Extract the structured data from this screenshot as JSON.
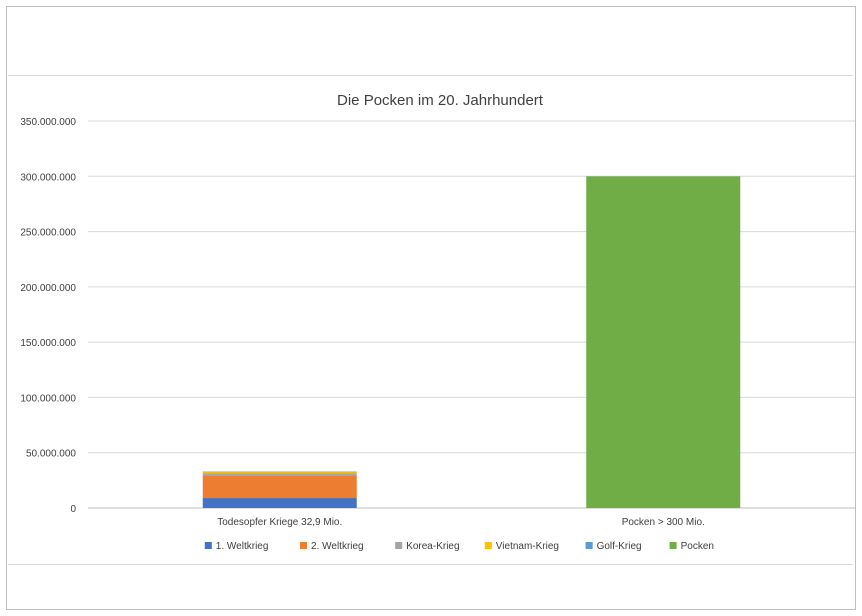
{
  "chart_data": {
    "type": "bar",
    "stacked": true,
    "title": "Die Pocken im 20. Jahrhundert",
    "categories": [
      "Todesopfer Kriege 32,9 Mio.",
      "Pocken > 300 Mio."
    ],
    "ylim": [
      0,
      350000000
    ],
    "yticks": [
      0,
      50000000,
      100000000,
      150000000,
      200000000,
      250000000,
      300000000,
      350000000
    ],
    "ytick_labels": [
      "0",
      "50.000.000",
      "100.000.000",
      "150.000.000",
      "200.000.000",
      "250.000.000",
      "300.000.000",
      "350.000.000"
    ],
    "grid": true,
    "legend_position": "bottom",
    "series": [
      {
        "name": "1. Weltkrieg",
        "color": "#4472c4",
        "values": [
          9000000,
          0
        ]
      },
      {
        "name": "2. Weltkrieg",
        "color": "#ed7d31",
        "values": [
          20500000,
          0
        ]
      },
      {
        "name": "Korea-Krieg",
        "color": "#a5a5a5",
        "values": [
          2000000,
          0
        ]
      },
      {
        "name": "Vietnam-Krieg",
        "color": "#ffc000",
        "values": [
          1300000,
          0
        ]
      },
      {
        "name": "Golf-Krieg",
        "color": "#5b9bd5",
        "values": [
          100000,
          0
        ]
      },
      {
        "name": "Pocken",
        "color": "#70ad47",
        "values": [
          0,
          300000000
        ]
      }
    ]
  }
}
